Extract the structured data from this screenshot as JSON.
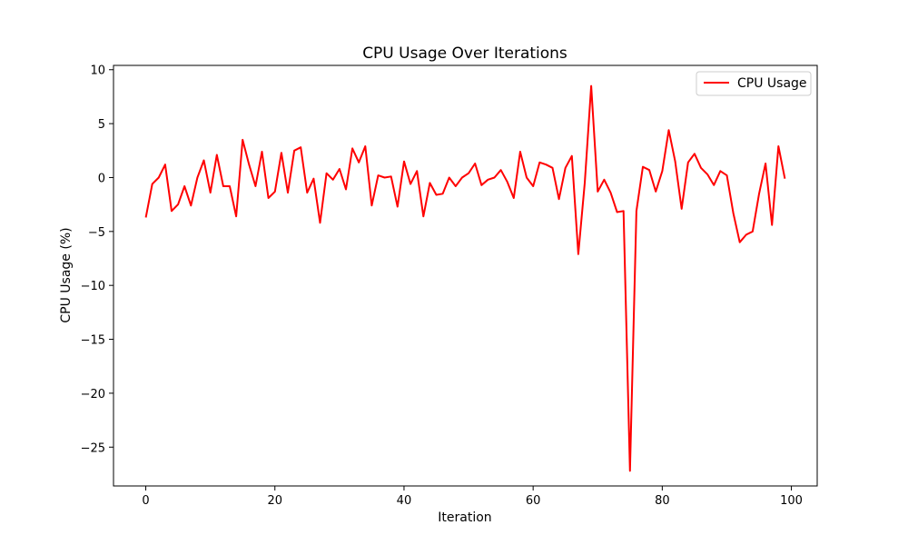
{
  "chart_data": {
    "type": "line",
    "title": "CPU Usage Over Iterations",
    "xlabel": "Iteration",
    "ylabel": "CPU Usage (%)",
    "xlim": [
      -5,
      104
    ],
    "ylim": [
      -28.6,
      10.4
    ],
    "xticks": [
      0,
      20,
      40,
      60,
      80,
      100
    ],
    "yticks": [
      10,
      5,
      0,
      -5,
      -10,
      -15,
      -20,
      -25
    ],
    "xtick_labels": [
      "0",
      "20",
      "40",
      "60",
      "80",
      "100"
    ],
    "ytick_labels": [
      "10",
      "5",
      "0",
      "−5",
      "−10",
      "−15",
      "−20",
      "−25"
    ],
    "grid": false,
    "legend": {
      "position": "top-right",
      "label": "CPU Usage"
    },
    "series": [
      {
        "name": "CPU Usage",
        "color": "#ff0000",
        "x": [
          0,
          1,
          2,
          3,
          4,
          5,
          6,
          7,
          8,
          9,
          10,
          11,
          12,
          13,
          14,
          15,
          16,
          17,
          18,
          19,
          20,
          21,
          22,
          23,
          24,
          25,
          26,
          27,
          28,
          29,
          30,
          31,
          32,
          33,
          34,
          35,
          36,
          37,
          38,
          39,
          40,
          41,
          42,
          43,
          44,
          45,
          46,
          47,
          48,
          49,
          50,
          51,
          52,
          53,
          54,
          55,
          56,
          57,
          58,
          59,
          60,
          61,
          62,
          63,
          64,
          65,
          66,
          67,
          68,
          69,
          70,
          71,
          72,
          73,
          74,
          75,
          76,
          77,
          78,
          79,
          80,
          81,
          82,
          83,
          84,
          85,
          86,
          87,
          88,
          89,
          90,
          91,
          92,
          93,
          94,
          95,
          96,
          97,
          98,
          99
        ],
        "values": [
          -3.7,
          -0.6,
          0.0,
          1.2,
          -3.1,
          -2.5,
          -0.8,
          -2.6,
          0.0,
          1.6,
          -1.4,
          2.1,
          -0.8,
          -0.8,
          -3.6,
          3.5,
          1.2,
          -0.8,
          2.4,
          -1.9,
          -1.3,
          2.3,
          -1.4,
          2.5,
          2.8,
          -1.4,
          -0.1,
          -4.2,
          0.4,
          -0.2,
          0.8,
          -1.1,
          2.7,
          1.4,
          2.9,
          -2.6,
          0.2,
          0.0,
          0.1,
          -2.7,
          1.5,
          -0.6,
          0.6,
          -3.6,
          -0.5,
          -1.6,
          -1.5,
          0.0,
          -0.8,
          0.0,
          0.4,
          1.3,
          -0.7,
          -0.2,
          0.0,
          0.7,
          -0.4,
          -1.9,
          2.4,
          0.0,
          -0.8,
          1.4,
          1.2,
          0.9,
          -2.0,
          0.9,
          2.0,
          -7.1,
          -0.5,
          8.5,
          -1.3,
          -0.2,
          -1.4,
          -3.2,
          -3.1,
          -27.2,
          -3.1,
          1.0,
          0.7,
          -1.3,
          0.6,
          4.4,
          1.5,
          -2.9,
          1.4,
          2.2,
          0.9,
          0.3,
          -0.7,
          0.6,
          0.2,
          -3.3,
          -6.0,
          -5.3,
          -5.0,
          -1.5,
          1.3,
          -4.4,
          2.9,
          -0.1
        ]
      }
    ]
  }
}
